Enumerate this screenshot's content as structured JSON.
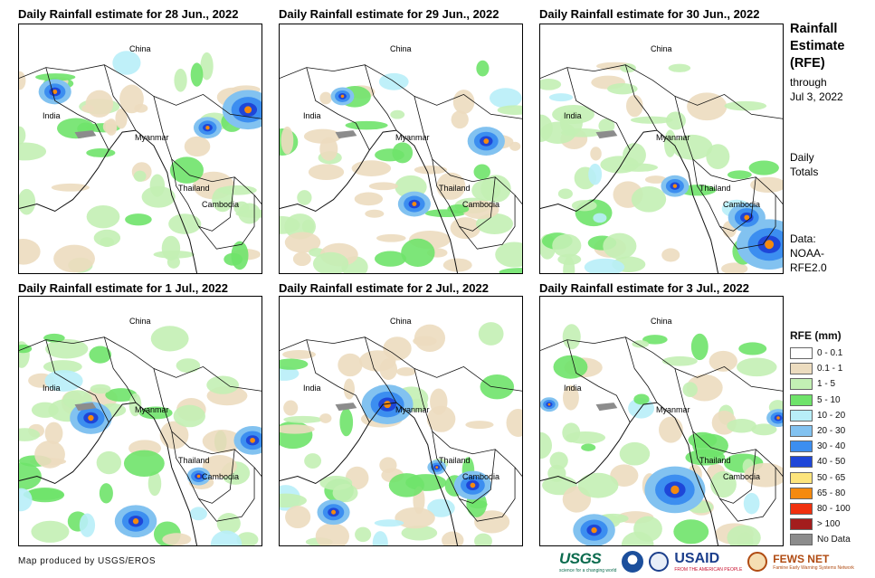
{
  "panels": [
    {
      "title": "Daily Rainfall estimate for 28 Jun., 2022"
    },
    {
      "title": "Daily Rainfall estimate for 29 Jun., 2022"
    },
    {
      "title": "Daily Rainfall estimate for 30 Jun., 2022"
    },
    {
      "title": "Daily Rainfall estimate for 1 Jul., 2022"
    },
    {
      "title": "Daily Rainfall estimate for 2 Jul., 2022"
    },
    {
      "title": "Daily Rainfall estimate for 3 Jul., 2022"
    }
  ],
  "places": {
    "china": "China",
    "india": "India",
    "myanmar": "Myanmar",
    "thailand": "Thailand",
    "cambodia": "Cambodia"
  },
  "sidebar": {
    "title_line1": "Rainfall",
    "title_line2": "Estimate",
    "title_line3": "(RFE)",
    "through": "through",
    "date": "Jul 3, 2022",
    "daily_line1": "Daily",
    "daily_line2": "Totals",
    "data_line1": "Data:",
    "data_line2": "NOAA-",
    "data_line3": "RFE2.0"
  },
  "legend": {
    "title": "RFE (mm)",
    "items": [
      {
        "label": "0 - 0.1",
        "color": "#ffffff"
      },
      {
        "label": "0.1 - 1",
        "color": "#ecdcbf"
      },
      {
        "label": "1 - 5",
        "color": "#c3f0b4"
      },
      {
        "label": "5 - 10",
        "color": "#6fe36a"
      },
      {
        "label": "10 - 20",
        "color": "#b8eef8"
      },
      {
        "label": "20 - 30",
        "color": "#82c2f0"
      },
      {
        "label": "30 - 40",
        "color": "#3c8ef0"
      },
      {
        "label": "40 - 50",
        "color": "#1e46d8"
      },
      {
        "label": "50 - 65",
        "color": "#fce47c"
      },
      {
        "label": "65 - 80",
        "color": "#f58a0f"
      },
      {
        "label": "80 - 100",
        "color": "#f0300e"
      },
      {
        "label": "> 100",
        "color": "#a31d1d"
      },
      {
        "label": "No Data",
        "color": "#8c8c8c"
      }
    ]
  },
  "credit": "Map produced by USGS/EROS",
  "logos": {
    "usgs": "USGS",
    "usgs_tag": "science for a changing world",
    "usaid": "USAID",
    "usaid_tag": "FROM THE AMERICAN PEOPLE",
    "fews": "FEWS NET",
    "fews_tag": "Famine Early Warning Systems Network"
  }
}
